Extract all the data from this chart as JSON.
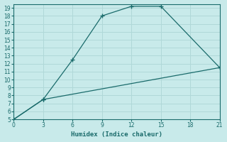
{
  "xlabel": "Humidex (Indice chaleur)",
  "line1_x": [
    0,
    3,
    6,
    9,
    12,
    15,
    21
  ],
  "line1_y": [
    5,
    7.5,
    12.5,
    18,
    19.2,
    19.2,
    11.5
  ],
  "line2_x": [
    0,
    3,
    21
  ],
  "line2_y": [
    5,
    7.5,
    11.5
  ],
  "line_color": "#1a6b6b",
  "bg_color": "#c8eaea",
  "grid_color": "#b0d8d8",
  "xlim": [
    0,
    21
  ],
  "ylim": [
    5,
    19.5
  ],
  "xticks": [
    0,
    3,
    6,
    9,
    12,
    15,
    18,
    21
  ],
  "yticks": [
    5,
    6,
    7,
    8,
    9,
    10,
    11,
    12,
    13,
    14,
    15,
    16,
    17,
    18,
    19
  ],
  "marker": "+"
}
